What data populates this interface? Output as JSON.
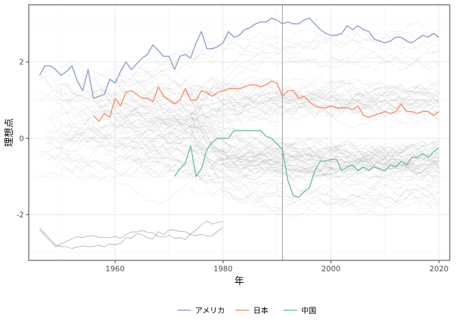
{
  "chart_data": {
    "type": "line",
    "xlabel": "年",
    "ylabel": "理想点",
    "xlim": [
      1944,
      2022
    ],
    "ylim": [
      -3.2,
      3.5
    ],
    "x_ticks": [
      1960,
      1980,
      2000,
      2020
    ],
    "y_ticks": [
      -2,
      0,
      2
    ],
    "grid": true,
    "legend_position": "bottom",
    "vline_x": 1991,
    "colors": {
      "アメリカ": "#8da0cb",
      "日本": "#fc8d62",
      "中国": "#66c2a5",
      "background_lines": "#bdbdbd",
      "vline": "#999999"
    },
    "legend": [
      {
        "label": "アメリカ",
        "color": "#8da0cb"
      },
      {
        "label": "日本",
        "color": "#fc8d62"
      },
      {
        "label": "中国",
        "color": "#66c2a5"
      }
    ],
    "series": [
      {
        "name": "アメリカ",
        "color": "#8da0cb",
        "points": [
          [
            1946,
            1.65
          ],
          [
            1947,
            1.9
          ],
          [
            1948,
            1.9
          ],
          [
            1949,
            1.8
          ],
          [
            1950,
            1.65
          ],
          [
            1951,
            1.75
          ],
          [
            1952,
            1.9
          ],
          [
            1953,
            1.5
          ],
          [
            1954,
            1.25
          ],
          [
            1955,
            1.8
          ],
          [
            1956,
            1.05
          ],
          [
            1957,
            1.1
          ],
          [
            1958,
            1.15
          ],
          [
            1959,
            1.55
          ],
          [
            1960,
            1.45
          ],
          [
            1961,
            1.75
          ],
          [
            1962,
            2.0
          ],
          [
            1963,
            1.8
          ],
          [
            1964,
            1.95
          ],
          [
            1965,
            2.1
          ],
          [
            1966,
            2.2
          ],
          [
            1967,
            2.45
          ],
          [
            1968,
            2.3
          ],
          [
            1969,
            2.15
          ],
          [
            1970,
            2.15
          ],
          [
            1971,
            1.8
          ],
          [
            1972,
            2.15
          ],
          [
            1973,
            2.2
          ],
          [
            1974,
            2.1
          ],
          [
            1975,
            2.5
          ],
          [
            1976,
            2.8
          ],
          [
            1977,
            2.35
          ],
          [
            1978,
            2.35
          ],
          [
            1979,
            2.4
          ],
          [
            1980,
            2.5
          ],
          [
            1981,
            2.8
          ],
          [
            1982,
            2.65
          ],
          [
            1983,
            2.7
          ],
          [
            1984,
            2.85
          ],
          [
            1985,
            2.9
          ],
          [
            1986,
            3.0
          ],
          [
            1987,
            3.05
          ],
          [
            1988,
            3.05
          ],
          [
            1989,
            3.15
          ],
          [
            1990,
            3.1
          ],
          [
            1991,
            3.0
          ],
          [
            1992,
            3.05
          ],
          [
            1993,
            3.0
          ],
          [
            1994,
            3.0
          ],
          [
            1995,
            3.1
          ],
          [
            1996,
            3.15
          ],
          [
            1997,
            3.0
          ],
          [
            1998,
            2.85
          ],
          [
            1999,
            2.75
          ],
          [
            2000,
            2.7
          ],
          [
            2001,
            2.7
          ],
          [
            2002,
            2.75
          ],
          [
            2003,
            2.95
          ],
          [
            2004,
            2.85
          ],
          [
            2005,
            2.95
          ],
          [
            2006,
            2.85
          ],
          [
            2007,
            2.8
          ],
          [
            2008,
            2.6
          ],
          [
            2009,
            2.55
          ],
          [
            2010,
            2.5
          ],
          [
            2011,
            2.55
          ],
          [
            2012,
            2.65
          ],
          [
            2013,
            2.65
          ],
          [
            2014,
            2.55
          ],
          [
            2015,
            2.5
          ],
          [
            2016,
            2.6
          ],
          [
            2017,
            2.7
          ],
          [
            2018,
            2.65
          ],
          [
            2019,
            2.75
          ],
          [
            2020,
            2.65
          ]
        ]
      },
      {
        "name": "日本",
        "color": "#fc8d62",
        "points": [
          [
            1956,
            0.6
          ],
          [
            1957,
            0.45
          ],
          [
            1958,
            0.65
          ],
          [
            1959,
            0.55
          ],
          [
            1960,
            1.05
          ],
          [
            1961,
            0.85
          ],
          [
            1962,
            1.2
          ],
          [
            1963,
            1.25
          ],
          [
            1964,
            1.15
          ],
          [
            1965,
            1.05
          ],
          [
            1966,
            1.05
          ],
          [
            1967,
            0.95
          ],
          [
            1968,
            1.35
          ],
          [
            1969,
            1.1
          ],
          [
            1970,
            1.0
          ],
          [
            1971,
            0.9
          ],
          [
            1972,
            1.0
          ],
          [
            1973,
            1.3
          ],
          [
            1974,
            1.0
          ],
          [
            1975,
            1.0
          ],
          [
            1976,
            1.25
          ],
          [
            1977,
            1.2
          ],
          [
            1978,
            1.1
          ],
          [
            1979,
            1.2
          ],
          [
            1980,
            1.25
          ],
          [
            1981,
            1.3
          ],
          [
            1982,
            1.3
          ],
          [
            1983,
            1.3
          ],
          [
            1984,
            1.35
          ],
          [
            1985,
            1.4
          ],
          [
            1986,
            1.4
          ],
          [
            1987,
            1.35
          ],
          [
            1988,
            1.4
          ],
          [
            1989,
            1.5
          ],
          [
            1990,
            1.45
          ],
          [
            1991,
            1.1
          ],
          [
            1992,
            1.25
          ],
          [
            1993,
            1.25
          ],
          [
            1994,
            1.05
          ],
          [
            1995,
            1.1
          ],
          [
            1996,
            0.95
          ],
          [
            1997,
            0.85
          ],
          [
            1998,
            0.8
          ],
          [
            1999,
            0.8
          ],
          [
            2000,
            0.85
          ],
          [
            2001,
            0.8
          ],
          [
            2002,
            0.8
          ],
          [
            2003,
            0.8
          ],
          [
            2004,
            0.75
          ],
          [
            2005,
            0.85
          ],
          [
            2006,
            0.6
          ],
          [
            2007,
            0.55
          ],
          [
            2008,
            0.6
          ],
          [
            2009,
            0.65
          ],
          [
            2010,
            0.7
          ],
          [
            2011,
            0.65
          ],
          [
            2012,
            0.7
          ],
          [
            2013,
            0.9
          ],
          [
            2014,
            0.7
          ],
          [
            2015,
            0.7
          ],
          [
            2016,
            0.65
          ],
          [
            2017,
            0.7
          ],
          [
            2018,
            0.7
          ],
          [
            2019,
            0.6
          ],
          [
            2020,
            0.7
          ]
        ]
      },
      {
        "name": "中国",
        "color": "#66c2a5",
        "points": [
          [
            1971,
            -1.0
          ],
          [
            1972,
            -0.8
          ],
          [
            1973,
            -0.65
          ],
          [
            1974,
            -0.2
          ],
          [
            1975,
            -1.0
          ],
          [
            1976,
            -0.8
          ],
          [
            1977,
            -0.3
          ],
          [
            1978,
            -0.1
          ],
          [
            1979,
            0.0
          ],
          [
            1980,
            0.0
          ],
          [
            1981,
            0.0
          ],
          [
            1982,
            0.2
          ],
          [
            1983,
            0.2
          ],
          [
            1984,
            0.2
          ],
          [
            1985,
            0.2
          ],
          [
            1986,
            0.2
          ],
          [
            1987,
            0.2
          ],
          [
            1988,
            0.05
          ],
          [
            1989,
            0.0
          ],
          [
            1990,
            -0.15
          ],
          [
            1991,
            -0.3
          ],
          [
            1992,
            -1.1
          ],
          [
            1993,
            -1.5
          ],
          [
            1994,
            -1.55
          ],
          [
            1995,
            -1.4
          ],
          [
            1996,
            -1.3
          ],
          [
            1997,
            -0.85
          ],
          [
            1998,
            -0.6
          ],
          [
            1999,
            -0.6
          ],
          [
            2000,
            -0.55
          ],
          [
            2001,
            -0.55
          ],
          [
            2002,
            -0.85
          ],
          [
            2003,
            -0.75
          ],
          [
            2004,
            -0.7
          ],
          [
            2005,
            -0.85
          ],
          [
            2006,
            -0.75
          ],
          [
            2007,
            -0.85
          ],
          [
            2008,
            -0.75
          ],
          [
            2009,
            -0.8
          ],
          [
            2010,
            -0.85
          ],
          [
            2011,
            -0.7
          ],
          [
            2012,
            -0.75
          ],
          [
            2013,
            -0.6
          ],
          [
            2014,
            -0.7
          ],
          [
            2015,
            -0.5
          ],
          [
            2016,
            -0.5
          ],
          [
            2017,
            -0.4
          ],
          [
            2018,
            -0.5
          ],
          [
            2019,
            -0.35
          ],
          [
            2020,
            -0.25
          ]
        ]
      }
    ]
  }
}
